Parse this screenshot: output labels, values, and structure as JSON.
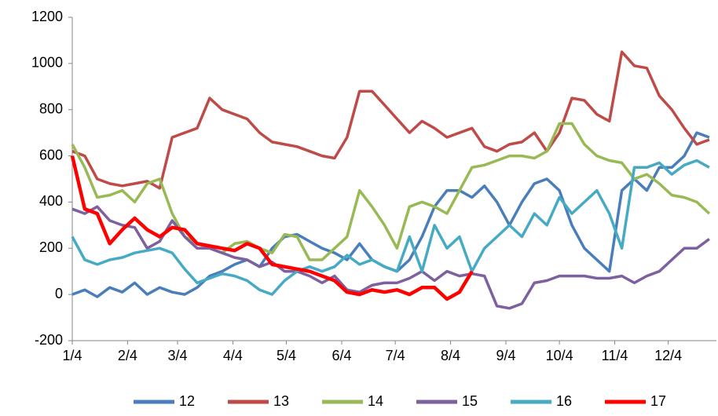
{
  "chart_data": {
    "type": "line",
    "x": [
      0,
      7,
      14,
      21,
      28,
      35,
      42,
      49,
      56,
      63,
      70,
      77,
      84,
      91,
      98,
      105,
      112,
      119,
      126,
      133,
      140,
      147,
      154,
      161,
      168,
      175,
      182,
      189,
      196,
      203,
      210,
      217,
      224,
      231,
      238,
      245,
      252,
      259,
      266,
      273,
      280,
      287,
      294,
      301,
      308,
      315,
      322,
      329,
      336,
      343,
      350,
      357
    ],
    "xlim": [
      0,
      361
    ],
    "xticks": [
      {
        "value": 0,
        "label": "1/4"
      },
      {
        "value": 31,
        "label": "2/4"
      },
      {
        "value": 59,
        "label": "3/4"
      },
      {
        "value": 90,
        "label": "4/4"
      },
      {
        "value": 120,
        "label": "5/4"
      },
      {
        "value": 151,
        "label": "6/4"
      },
      {
        "value": 181,
        "label": "7/4"
      },
      {
        "value": 212,
        "label": "8/4"
      },
      {
        "value": 243,
        "label": "9/4"
      },
      {
        "value": 273,
        "label": "10/4"
      },
      {
        "value": 304,
        "label": "11/4"
      },
      {
        "value": 334,
        "label": "12/4"
      }
    ],
    "ylim": [
      -200,
      1200
    ],
    "yticks": [
      -200,
      0,
      200,
      400,
      600,
      800,
      1000,
      1200
    ],
    "grid": false,
    "legend": "bottom",
    "series": [
      {
        "name": "12",
        "color": "#4a7ebb",
        "values": [
          0,
          20,
          -10,
          30,
          10,
          50,
          0,
          30,
          10,
          0,
          30,
          80,
          100,
          130,
          150,
          120,
          200,
          250,
          260,
          230,
          200,
          180,
          150,
          220,
          150,
          120,
          100,
          150,
          250,
          380,
          450,
          450,
          420,
          470,
          400,
          300,
          400,
          480,
          500,
          450,
          300,
          200,
          150,
          100,
          450,
          500,
          450,
          550,
          550,
          600,
          700,
          680
        ]
      },
      {
        "name": "13",
        "color": "#be4b48",
        "values": [
          620,
          600,
          500,
          480,
          470,
          480,
          490,
          460,
          680,
          700,
          720,
          850,
          800,
          780,
          760,
          700,
          660,
          650,
          640,
          620,
          600,
          590,
          680,
          880,
          880,
          820,
          760,
          700,
          750,
          720,
          680,
          700,
          720,
          640,
          620,
          650,
          660,
          700,
          620,
          700,
          850,
          840,
          780,
          750,
          1050,
          990,
          980,
          860,
          800,
          720,
          650,
          670
        ]
      },
      {
        "name": "14",
        "color": "#98b954",
        "values": [
          650,
          550,
          420,
          430,
          450,
          400,
          480,
          500,
          350,
          250,
          220,
          200,
          180,
          220,
          230,
          200,
          180,
          260,
          250,
          150,
          150,
          200,
          250,
          450,
          380,
          300,
          200,
          380,
          400,
          380,
          350,
          450,
          550,
          560,
          580,
          600,
          600,
          590,
          620,
          740,
          740,
          650,
          600,
          580,
          570,
          500,
          520,
          480,
          430,
          420,
          400,
          350
        ]
      },
      {
        "name": "15",
        "color": "#7d60a0",
        "values": [
          370,
          350,
          380,
          320,
          300,
          290,
          200,
          230,
          320,
          250,
          200,
          200,
          180,
          160,
          150,
          120,
          140,
          100,
          100,
          80,
          50,
          80,
          20,
          10,
          40,
          50,
          50,
          70,
          100,
          60,
          100,
          80,
          90,
          80,
          -50,
          -60,
          -40,
          50,
          60,
          80,
          80,
          80,
          70,
          70,
          80,
          50,
          80,
          100,
          150,
          200,
          200,
          240
        ]
      },
      {
        "name": "16",
        "color": "#46aac5",
        "values": [
          250,
          150,
          130,
          150,
          160,
          180,
          190,
          200,
          180,
          110,
          50,
          70,
          90,
          80,
          60,
          20,
          0,
          60,
          100,
          120,
          100,
          120,
          170,
          130,
          150,
          120,
          100,
          250,
          100,
          300,
          200,
          250,
          100,
          200,
          250,
          300,
          250,
          350,
          300,
          420,
          350,
          400,
          450,
          350,
          200,
          550,
          550,
          570,
          520,
          560,
          580,
          550
        ]
      },
      {
        "name": "17",
        "color": "#ff0000",
        "values": [
          600,
          370,
          350,
          220,
          280,
          330,
          280,
          250,
          290,
          280,
          220,
          210,
          200,
          190,
          220,
          200,
          130,
          120,
          110,
          100,
          80,
          60,
          10,
          0,
          20,
          10,
          20,
          0,
          30,
          30,
          -20,
          10,
          100,
          null,
          null,
          null,
          null,
          null,
          null,
          null,
          null,
          null,
          null,
          null,
          null,
          null,
          null,
          null,
          null,
          null,
          null,
          null
        ]
      }
    ]
  }
}
